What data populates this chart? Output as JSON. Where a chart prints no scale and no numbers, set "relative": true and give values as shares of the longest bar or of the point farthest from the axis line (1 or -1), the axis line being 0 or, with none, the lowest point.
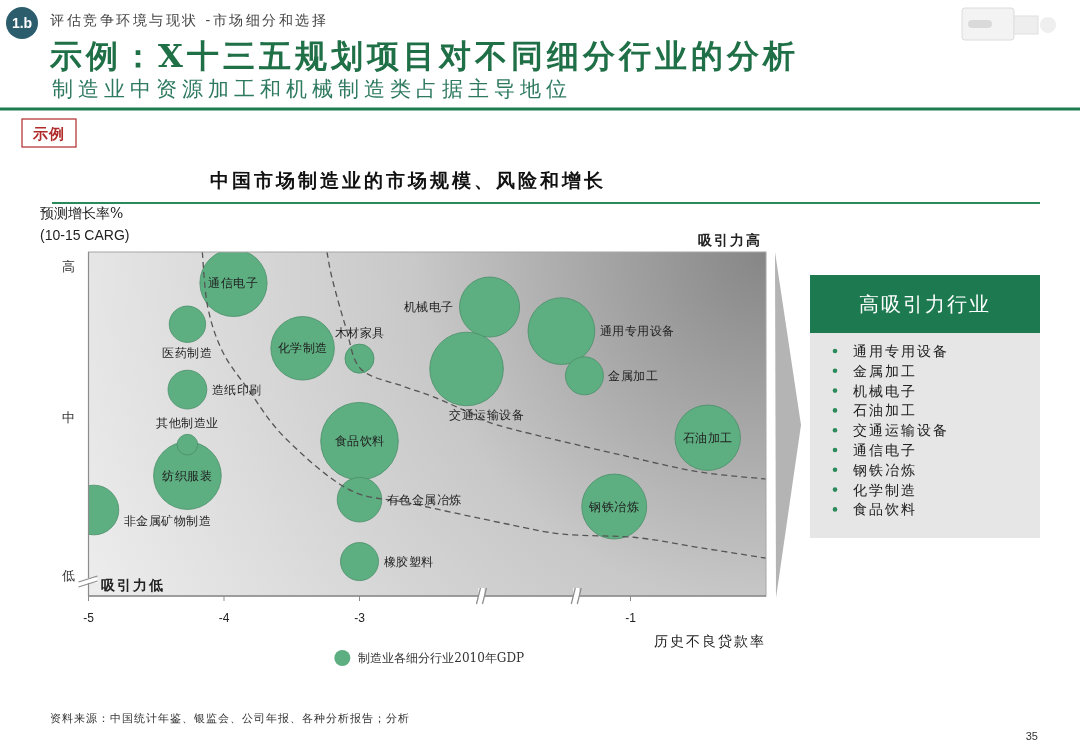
{
  "chart_data": [
    {
      "type": "bubble",
      "title": "中国市场制造业的市场规模、风险和增长",
      "xlabel": "历史不良贷款率",
      "ylabel": "预测增长率%\n(10-15 CARG)",
      "xlim": [
        -5,
        0
      ],
      "xticks": [
        -5,
        -4,
        -3,
        -1
      ],
      "relative": true,
      "legend": "bottom",
      "series": [
        {
          "name": "制造业各细分行业2010年GDP",
          "type": "bubble",
          "color": "#5dae80",
          "x": [
            -4.96,
            -4.27,
            -4.27,
            -4.27,
            -4.27,
            -3.93,
            -3.42,
            -3.0,
            -1.51,
            -2.04,
            -2.21,
            -1.34,
            -3.0,
            -3.0,
            -3.0,
            -1.12,
            -0.43
          ],
          "values": [
            0.25,
            0.35,
            0.44,
            0.6,
            0.79,
            0.91,
            0.72,
            0.69,
            0.77,
            0.84,
            0.66,
            0.64,
            0.45,
            0.28,
            0.1,
            0.26,
            0.46
          ],
          "sizes": [
            0.41,
            0.76,
            0.07,
            0.25,
            0.22,
            0.75,
            0.67,
            0.14,
            0.74,
            0.6,
            0.9,
            0.24,
            1,
            0.33,
            0.24,
            0.7,
            0.71
          ]
        },
        {
          "type": "line",
          "line_style": "dashed",
          "color": "#555555",
          "x": [
            -4.16,
            -4.12,
            -4.01,
            -3.82,
            -3.55,
            -3.08,
            -2.63,
            -1.92,
            -1.5,
            -0.96,
            -0.48,
            0
          ],
          "values": [
            1,
            0.84,
            0.71,
            0.6,
            0.46,
            0.31,
            0.27,
            0.21,
            0.18,
            0.17,
            0.14,
            0.11
          ]
        },
        {
          "type": "line",
          "line_style": "dashed",
          "color": "#555555",
          "x": [
            -3.24,
            -3.2,
            -3.1,
            -2.99,
            -2.68,
            -2.46,
            -2.17,
            -1.92,
            -0.96,
            -0.48,
            0
          ],
          "values": [
            1,
            0.92,
            0.78,
            0.66,
            0.61,
            0.58,
            0.53,
            0.49,
            0.4,
            0.36,
            0.34
          ]
        }
      ],
      "annotations": [
        "1.b",
        "评估竞争环境与现状 -市场细分和选择",
        "示例：X十三五规划项目对不同细分行业的分析",
        "制造业中资源加工和机械制造类占据主导地位",
        "示例",
        "吸引力高",
        "高",
        "中",
        "低",
        "吸引力低",
        "资料来源：中国统计年鉴、银监会、公司年报、各种分析报告；分析",
        "35",
        "通用专用设备",
        "机械电子",
        "交通运输设备",
        {
          "text": "非金属矿物制造",
          "x": -4.96,
          "y": 0.25
        },
        {
          "text": "纺织服装",
          "x": -4.27,
          "y": 0.35
        },
        {
          "text": "其他制造业",
          "x": -4.27,
          "y": 0.44
        },
        {
          "text": "造纸印刷",
          "x": -4.27,
          "y": 0.6
        },
        {
          "text": "医药制造",
          "x": -4.27,
          "y": 0.79
        },
        {
          "text": "通信电子",
          "x": -3.93,
          "y": 0.91
        },
        {
          "text": "化学制造",
          "x": -3.42,
          "y": 0.72
        },
        {
          "text": "木材家具",
          "x": -3.0,
          "y": 0.69
        },
        {
          "text": "金属加工",
          "x": -1.34,
          "y": 0.64
        },
        {
          "text": "食品饮料",
          "x": -3.0,
          "y": 0.45
        },
        {
          "text": "有色金属冶炼",
          "x": -3.0,
          "y": 0.28
        },
        {
          "text": "橡胶塑料",
          "x": -3.0,
          "y": 0.1
        },
        {
          "text": "钢铁冶炼",
          "x": -1.12,
          "y": 0.26
        },
        {
          "text": "石油加工",
          "x": -0.43,
          "y": 0.46
        }
      ]
    },
    {
      "type": "other",
      "title": "高吸引力行业",
      "annotations": [
        "通用专用设备",
        "金属加工",
        "机械电子",
        "石油加工",
        "交通运输设备",
        "通信电子",
        "钢铁冶炼",
        "化学制造",
        "食品饮料"
      ]
    }
  ]
}
